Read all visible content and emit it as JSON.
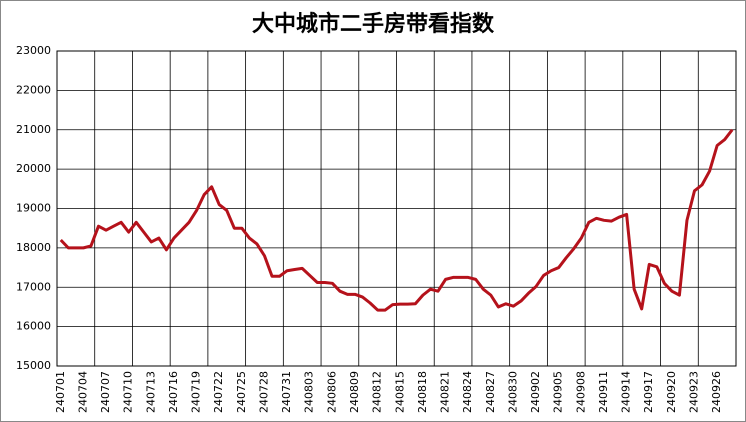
{
  "chart_data": {
    "type": "line",
    "title": "大中城市二手房带看指数",
    "categories": [
      "240701",
      null,
      null,
      "240704",
      null,
      null,
      "240707",
      null,
      null,
      "240710",
      null,
      null,
      "240713",
      null,
      null,
      "240716",
      null,
      null,
      "240719",
      null,
      null,
      "240722",
      null,
      null,
      "240725",
      null,
      null,
      "240728",
      null,
      null,
      "240731",
      null,
      null,
      "240803",
      null,
      null,
      "240806",
      null,
      null,
      "240809",
      null,
      null,
      "240812",
      null,
      null,
      "240815",
      null,
      null,
      "240818",
      null,
      null,
      "240821",
      null,
      null,
      "240824",
      null,
      null,
      "240827",
      null,
      null,
      "240830",
      null,
      null,
      "240902",
      null,
      null,
      "240905",
      null,
      null,
      "240908",
      null,
      null,
      "240911",
      null,
      null,
      "240914",
      null,
      null,
      "240917",
      null,
      null,
      "240920",
      null,
      null,
      "240923",
      null,
      null,
      "240926",
      null,
      null
    ],
    "series": [
      {
        "color": "#b5121b",
        "values": [
          18200,
          18000,
          18000,
          18000,
          18050,
          18550,
          18450,
          18550,
          18650,
          18400,
          18650,
          18400,
          18150,
          18250,
          17950,
          18250,
          18450,
          18650,
          18950,
          19350,
          19550,
          19100,
          18950,
          18500,
          18500,
          18250,
          18100,
          17800,
          17280,
          17280,
          17420,
          17450,
          17480,
          17300,
          17120,
          17120,
          17100,
          16900,
          16820,
          16820,
          16750,
          16600,
          16420,
          16420,
          16560,
          16570,
          16570,
          16580,
          16800,
          16950,
          16900,
          17200,
          17250,
          17250,
          17250,
          17200,
          16950,
          16800,
          16500,
          16580,
          16520,
          16650,
          16850,
          17020,
          17300,
          17420,
          17500,
          17750,
          17980,
          18250,
          18650,
          18750,
          18700,
          18680,
          18780,
          18850,
          16950,
          16450,
          17580,
          17520,
          17100,
          16900,
          16800,
          18700,
          19450,
          19600,
          19950,
          20600,
          20750,
          21000
        ]
      }
    ],
    "ylim": [
      15000,
      23000
    ],
    "yticks": [
      15000,
      16000,
      17000,
      18000,
      19000,
      20000,
      21000,
      22000,
      23000
    ],
    "grid": true
  }
}
